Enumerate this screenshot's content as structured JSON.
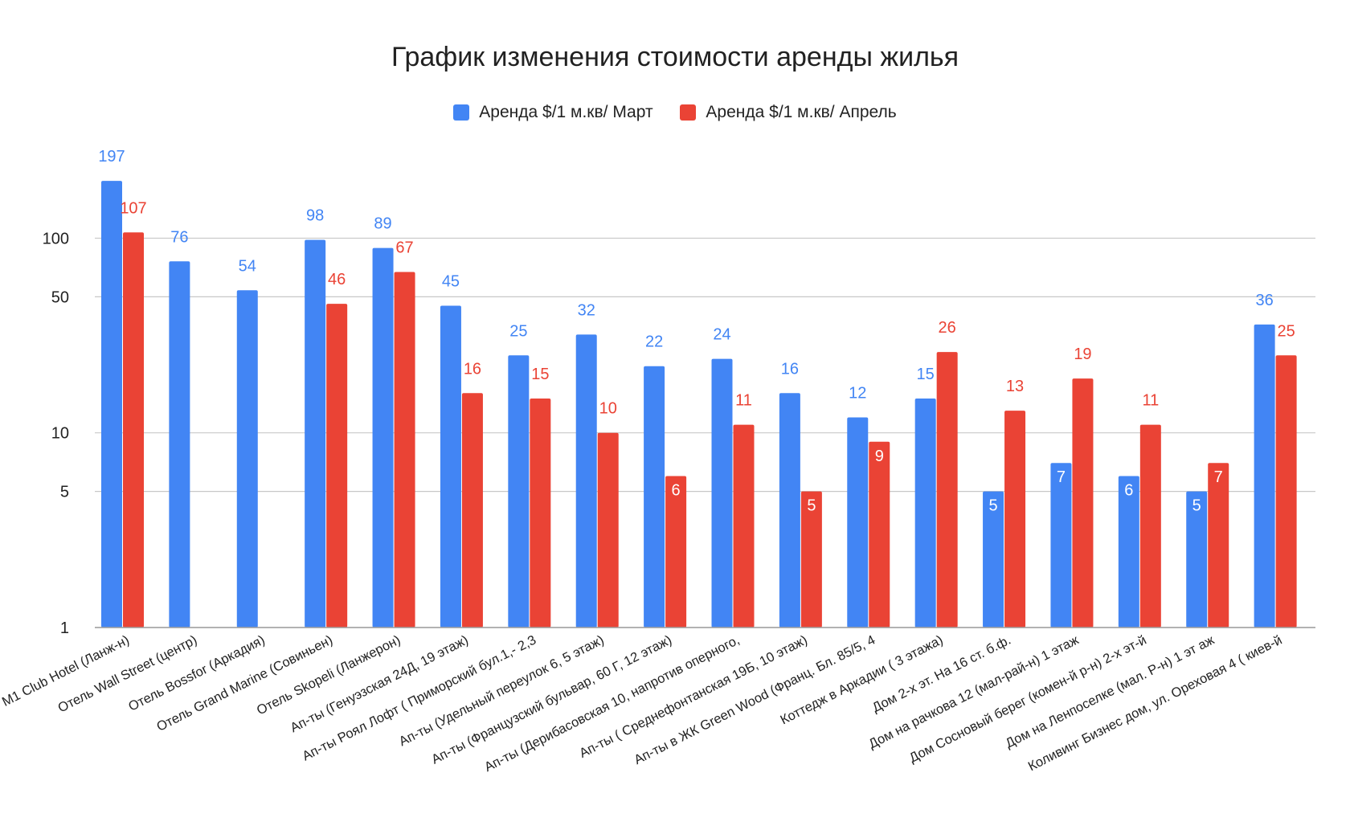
{
  "chart_data": {
    "type": "bar",
    "title": "График изменения стоимости аренды жилья",
    "xlabel": "",
    "ylabel": "",
    "yscale": "log",
    "ylim": [
      1,
      250
    ],
    "yticks": [
      1,
      5,
      10,
      50,
      100
    ],
    "grid": true,
    "legend_position": "top",
    "categories": [
      "M1 Club Hotel (Ланж-н)",
      "Отель Wall Street (центр)",
      "Отель Bossfor (Аркадия)",
      "Отель Grand Marine (Совиньен)",
      "Отель Skopeli (Ланжерон)",
      "Ап-ты (Генуэзская 24Д, 19 этаж)",
      "Ап-ты Роял Лофт ( Приморский бул.1,- 2,3",
      "Ап-ты (Удельный переулок 6, 5 этаж)",
      "Ап-ты (Французский бульвар, 60 Г, 12 этаж)",
      "Ап-ты (Дерибасовская 10, напротив оперного,",
      "Ап-ты ( Среднефонтанская 19Б, 10 этаж)",
      "Ап-ты в ЖК Green Wood (Франц. Бл. 85/5, 4",
      "Коттедж в Аркадии ( 3 этажа)",
      "Дом 2-х эт. На 16 ст. б.ф.",
      "Дом на рачкова 12 (мал-рай-н) 1 этаж",
      "Дом Сосновый берег (комен-й р-н) 2-х эт-й",
      "Дом на Ленпоселке (мал. Р-н) 1 эт аж",
      "Коливинг Бизнес дом, ул. Ореховая 4 ( киев-й"
    ],
    "series": [
      {
        "name": "Аренда $/1 м.кв/ Март",
        "color": "#4285f4",
        "values": [
          197,
          76,
          54,
          98,
          89,
          45,
          25,
          32,
          22,
          24,
          16,
          12,
          15,
          5,
          7,
          6,
          5,
          36
        ]
      },
      {
        "name": "Аренда $/1 м.кв/ Апрель",
        "color": "#ea4335",
        "values": [
          107,
          null,
          null,
          46,
          67,
          16,
          15,
          10,
          6,
          11,
          5,
          9,
          26,
          13,
          19,
          11,
          7,
          25
        ]
      }
    ]
  }
}
